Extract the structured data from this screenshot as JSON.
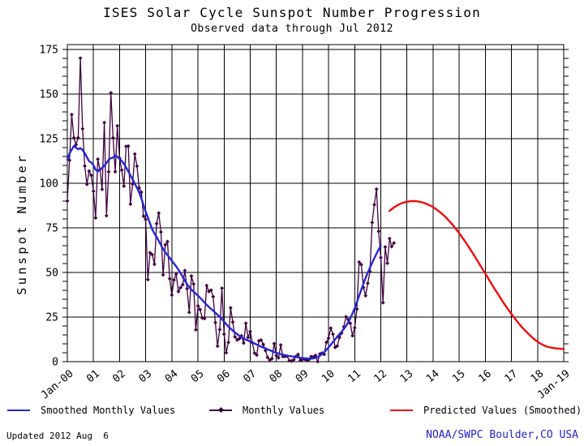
{
  "header": {
    "title": "ISES Solar Cycle Sunspot Number Progression",
    "subtitle": "Observed data through Jul 2012"
  },
  "footer": {
    "updated": "Updated 2012 Aug  6",
    "source": "NOAA/SWPC Boulder,CO USA",
    "source_color": "#2222cc"
  },
  "legend": [
    {
      "label": "Smoothed Monthly Values",
      "color": "#2626d8",
      "marker": "line"
    },
    {
      "label": "Monthly Values",
      "color": "#400040",
      "marker": "line-diamond"
    },
    {
      "label": "Predicted Values (Smoothed)",
      "color": "#ee0c0c",
      "marker": "line"
    }
  ],
  "colors": {
    "background": "#ffffff",
    "grid": "#000000",
    "text": "#000000",
    "monthly": "#400040",
    "smoothed": "#2626d8",
    "predicted": "#ee0c0c",
    "source_text": "#2222cc"
  },
  "chart_data": {
    "type": "line",
    "title": "ISES Solar Cycle Sunspot Number Progression",
    "subtitle": "Observed data through Jul 2012",
    "xlabel": "",
    "ylabel": "Sunspot Number",
    "ylim": [
      0,
      175
    ],
    "ytick_step": 25,
    "y_minor_tick_step": 5,
    "ytick_labels": [
      "0",
      "25",
      "50",
      "75",
      "100",
      "125",
      "150",
      "175"
    ],
    "xtick_labels": [
      "Jan-00",
      "01",
      "02",
      "03",
      "04",
      "05",
      "06",
      "07",
      "08",
      "09",
      "10",
      "11",
      "12",
      "13",
      "14",
      "15",
      "16",
      "17",
      "18",
      "Jan-19"
    ],
    "x_range_months": 228,
    "grid": true,
    "legend_position": "bottom",
    "series": [
      {
        "name": "Monthly Values",
        "color": "#400040",
        "marker": "diamond",
        "start_month_index": 0,
        "start_label": "Jan 2000",
        "end_label": "Jul 2012",
        "values": [
          90.1,
          112.9,
          138.5,
          125.5,
          121.6,
          125.5,
          170.1,
          130.5,
          109.7,
          99.4,
          106.8,
          104.4,
          95.6,
          80.6,
          113.5,
          107.7,
          96.6,
          134.0,
          81.8,
          106.4,
          150.7,
          125.5,
          106.5,
          132.2,
          114.1,
          107.4,
          98.4,
          120.7,
          120.8,
          88.3,
          99.6,
          116.4,
          109.6,
          97.5,
          95.0,
          81.6,
          79.7,
          46.0,
          61.1,
          60.0,
          54.6,
          77.4,
          83.3,
          72.7,
          48.7,
          65.5,
          67.3,
          46.5,
          37.3,
          45.8,
          49.1,
          39.3,
          41.5,
          43.2,
          51.1,
          40.9,
          27.7,
          48.0,
          43.5,
          17.9,
          31.3,
          29.2,
          24.5,
          24.2,
          42.7,
          39.3,
          40.1,
          36.4,
          21.9,
          8.7,
          18.0,
          41.2,
          15.4,
          5.0,
          10.8,
          30.2,
          22.2,
          13.9,
          12.2,
          12.9,
          14.5,
          10.4,
          21.5,
          13.6,
          16.9,
          10.6,
          4.8,
          3.7,
          11.7,
          12.1,
          9.7,
          6.2,
          2.4,
          0.9,
          1.7,
          10.1,
          3.4,
          2.1,
          9.3,
          2.9,
          2.9,
          3.1,
          0.6,
          0.3,
          1.1,
          2.9,
          4.1,
          0.8,
          1.3,
          1.4,
          0.7,
          1.2,
          2.9,
          2.6,
          3.5,
          0.0,
          4.3,
          4.8,
          4.1,
          10.8,
          13.2,
          18.8,
          15.4,
          8.0,
          8.8,
          13.5,
          16.1,
          19.6,
          25.2,
          23.5,
          21.5,
          14.5,
          19.0,
          29.4,
          55.8,
          54.4,
          41.6,
          37.0,
          43.9,
          50.6,
          78.0,
          88.0,
          96.7,
          73.0,
          58.3,
          33.1,
          64.3,
          55.2,
          69.0,
          64.5,
          66.5
        ]
      },
      {
        "name": "Smoothed Monthly Values",
        "color": "#2626d8",
        "marker": "none",
        "start_month_index": 0,
        "start_label": "Jan 2000",
        "end_label": "Jan 2012",
        "values": [
          113.3,
          116.6,
          118.9,
          120.8,
          120.0,
          119.1,
          119.7,
          118.6,
          116.9,
          114.6,
          112.4,
          111.6,
          110.1,
          107.6,
          106.6,
          107.8,
          108.6,
          109.8,
          111.4,
          113.2,
          114.1,
          114.4,
          115.5,
          114.9,
          113.7,
          112.5,
          110.9,
          108.8,
          106.6,
          104.4,
          102.2,
          99.7,
          97.5,
          94.8,
          91.5,
          87.8,
          84.0,
          80.8,
          77.4,
          74.2,
          71.8,
          69.9,
          67.7,
          65.4,
          63.2,
          61.3,
          59.7,
          58.2,
          56.6,
          55.0,
          53.4,
          51.6,
          49.6,
          47.5,
          45.4,
          43.4,
          41.8,
          40.4,
          39.2,
          38.1,
          37.0,
          35.8,
          34.5,
          33.2,
          31.9,
          30.7,
          29.6,
          28.5,
          27.4,
          26.3,
          25.1,
          23.8,
          22.4,
          21.0,
          19.7,
          18.5,
          17.4,
          16.4,
          15.4,
          14.5,
          13.7,
          13.0,
          12.4,
          11.8,
          11.3,
          10.8,
          10.2,
          9.6,
          9.0,
          8.4,
          7.9,
          7.4,
          6.9,
          6.4,
          5.9,
          5.4,
          5.0,
          4.6,
          4.2,
          3.9,
          3.6,
          3.4,
          3.2,
          3.0,
          2.8,
          2.6,
          2.4,
          2.2,
          2.0,
          1.9,
          1.8,
          1.7,
          1.7,
          1.8,
          2.1,
          2.6,
          3.3,
          4.2,
          5.3,
          6.6,
          8.0,
          9.5,
          11.0,
          12.5,
          14.0,
          15.4,
          16.8,
          18.3,
          20.0,
          22.0,
          24.3,
          27.0,
          30.0,
          33.3,
          36.8,
          40.3,
          43.7,
          46.9,
          49.9,
          52.7,
          55.4,
          58.0,
          60.5,
          62.8,
          64.9
        ]
      },
      {
        "name": "Predicted Values (Smoothed)",
        "color": "#ee0c0c",
        "marker": "none",
        "start_month_index": 148,
        "start_label": "May 2012",
        "end_label": "Jan 2019",
        "values": [
          84.5,
          85.5,
          86.4,
          87.2,
          87.9,
          88.5,
          89.0,
          89.3,
          89.6,
          89.8,
          90.0,
          90.0,
          90.0,
          89.8,
          89.6,
          89.3,
          88.9,
          88.4,
          87.9,
          87.3,
          86.6,
          85.8,
          84.9,
          84.0,
          83.0,
          81.9,
          80.7,
          79.4,
          78.1,
          76.7,
          75.2,
          73.6,
          72.0,
          70.3,
          68.6,
          66.8,
          65.0,
          63.1,
          61.2,
          59.3,
          57.3,
          55.3,
          53.3,
          51.3,
          49.3,
          47.3,
          45.3,
          43.3,
          41.3,
          39.4,
          37.5,
          35.6,
          33.7,
          31.9,
          30.1,
          28.4,
          26.7,
          25.1,
          23.5,
          22.0,
          20.5,
          19.1,
          17.8,
          16.5,
          15.3,
          14.2,
          13.1,
          12.1,
          11.2,
          10.4,
          9.7,
          9.1,
          8.6,
          8.2,
          7.9,
          7.7,
          7.5,
          7.4,
          7.3,
          7.2,
          7.1
        ]
      }
    ]
  }
}
